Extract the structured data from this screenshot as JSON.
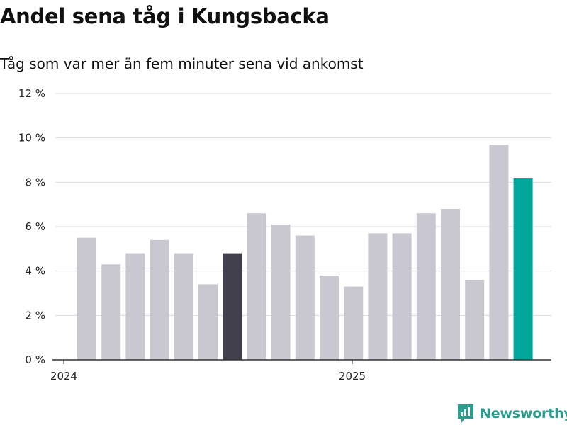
{
  "header": {
    "title": "Andel sena tåg i Kungsbacka",
    "subtitle": "Tåg som var mer än fem minuter sena vid ankomst"
  },
  "brand": {
    "name": "Newsworthy",
    "icon": "newsworthy-logo-icon",
    "color": "#2a9d8f"
  },
  "chart_data": {
    "type": "bar",
    "title": "Andel sena tåg i Kungsbacka",
    "subtitle": "Tåg som var mer än fem minuter sena vid ankomst",
    "x": [
      "2024-01",
      "2024-02",
      "2024-03",
      "2024-04",
      "2024-05",
      "2024-06",
      "2024-07",
      "2024-08",
      "2024-09",
      "2024-10",
      "2024-11",
      "2024-12",
      "2025-01",
      "2025-02",
      "2025-03",
      "2025-04",
      "2025-05",
      "2025-06",
      "2025-07"
    ],
    "values": [
      5.5,
      4.3,
      4.8,
      5.4,
      4.8,
      3.4,
      4.8,
      6.6,
      6.1,
      5.6,
      3.8,
      3.3,
      5.7,
      5.7,
      6.6,
      6.8,
      3.6,
      9.7,
      8.2
    ],
    "bar_colors": [
      "#c9c8d0",
      "#c9c8d0",
      "#c9c8d0",
      "#c9c8d0",
      "#c9c8d0",
      "#c9c8d0",
      "#42404d",
      "#c9c8d0",
      "#c9c8d0",
      "#c9c8d0",
      "#c9c8d0",
      "#c9c8d0",
      "#c9c8d0",
      "#c9c8d0",
      "#c9c8d0",
      "#c9c8d0",
      "#c9c8d0",
      "#c9c8d0",
      "#00a699"
    ],
    "ylim": [
      0,
      12
    ],
    "y_ticks": [
      0,
      2,
      4,
      6,
      8,
      10,
      12
    ],
    "y_tick_labels": [
      "0 %",
      "2 %",
      "4 %",
      "6 %",
      "8 %",
      "10 %",
      "12 %"
    ],
    "x_tick_labels": [
      {
        "label": "2024",
        "at": "2024-01"
      },
      {
        "label": "2025",
        "at": "2025-01"
      }
    ],
    "grid": true,
    "legend": "none"
  }
}
